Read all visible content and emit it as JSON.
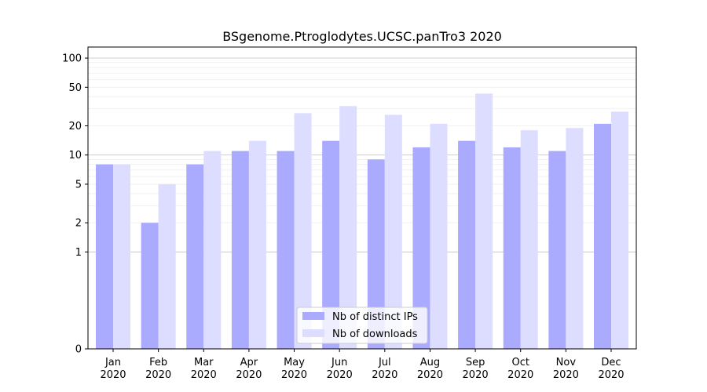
{
  "chart_data": {
    "type": "bar",
    "title": "BSgenome.Ptroglodytes.UCSC.panTro3 2020",
    "xlabel": "",
    "ylabel": "",
    "yscale": "symlog",
    "ylim": [
      0,
      130
    ],
    "yticks": [
      0,
      1,
      2,
      5,
      10,
      20,
      50,
      100
    ],
    "categories": [
      [
        "Jan",
        "2020"
      ],
      [
        "Feb",
        "2020"
      ],
      [
        "Mar",
        "2020"
      ],
      [
        "Apr",
        "2020"
      ],
      [
        "May",
        "2020"
      ],
      [
        "Jun",
        "2020"
      ],
      [
        "Jul",
        "2020"
      ],
      [
        "Aug",
        "2020"
      ],
      [
        "Sep",
        "2020"
      ],
      [
        "Oct",
        "2020"
      ],
      [
        "Nov",
        "2020"
      ],
      [
        "Dec",
        "2020"
      ]
    ],
    "series": [
      {
        "name": "Nb of distinct IPs",
        "color": "#aaaaff",
        "values": [
          8,
          2,
          8,
          11,
          11,
          14,
          9,
          12,
          14,
          12,
          11,
          21
        ]
      },
      {
        "name": "Nb of downloads",
        "color": "#ddddff",
        "values": [
          8,
          5,
          11,
          14,
          27,
          32,
          26,
          21,
          43,
          18,
          19,
          28
        ]
      }
    ],
    "grid": true,
    "legend_position": "bottom-center"
  }
}
